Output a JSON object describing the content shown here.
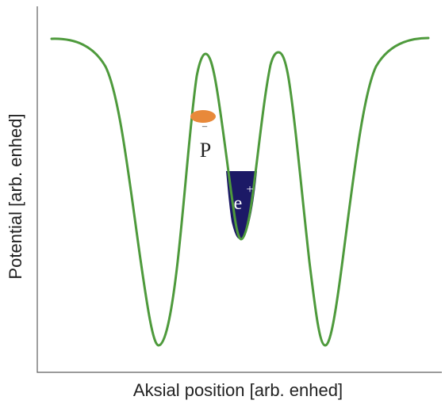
{
  "diagram": {
    "xlabel": "Aksial position [arb. enhed]",
    "ylabel": "Potential [arb. enhed]",
    "antiproton_label": "P",
    "antiproton_bar": "‾",
    "positron_label": "e",
    "positron_charge": "+"
  },
  "colors": {
    "curve": "#4e9a3c",
    "antiproton": "#e8893a",
    "positron_fill": "#1c1966",
    "frame": "#5f5f5f",
    "positron_text": "#ffffff"
  }
}
